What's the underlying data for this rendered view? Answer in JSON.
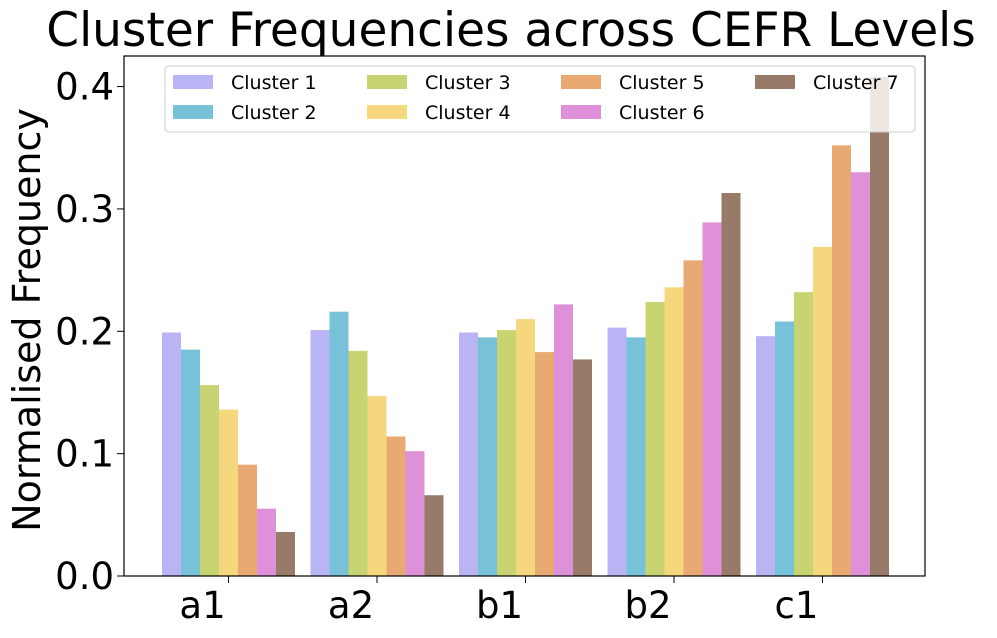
{
  "chart_data": {
    "type": "bar",
    "title": "Cluster Frequencies across CEFR Levels",
    "xlabel": "",
    "ylabel": "Normalised Frequency",
    "categories": [
      "a1",
      "a2",
      "b1",
      "b2",
      "c1"
    ],
    "ylim": [
      0,
      0.425
    ],
    "yticks": [
      0.0,
      0.1,
      0.2,
      0.3,
      0.4
    ],
    "ytick_labels": [
      "0.0",
      "0.1",
      "0.2",
      "0.3",
      "0.4"
    ],
    "legend_position": "top",
    "legend_columns": 4,
    "grid": false,
    "series": [
      {
        "name": "Cluster 1",
        "color": "#b9b4f3",
        "values": [
          0.199,
          0.201,
          0.199,
          0.203,
          0.196
        ]
      },
      {
        "name": "Cluster 2",
        "color": "#77c1d9",
        "values": [
          0.185,
          0.216,
          0.195,
          0.195,
          0.208
        ]
      },
      {
        "name": "Cluster 3",
        "color": "#c8d372",
        "values": [
          0.156,
          0.184,
          0.201,
          0.224,
          0.232
        ]
      },
      {
        "name": "Cluster 4",
        "color": "#f5d87e",
        "values": [
          0.136,
          0.147,
          0.21,
          0.236,
          0.269
        ]
      },
      {
        "name": "Cluster 5",
        "color": "#e9a973",
        "values": [
          0.091,
          0.114,
          0.183,
          0.258,
          0.352
        ]
      },
      {
        "name": "Cluster 6",
        "color": "#de91d8",
        "values": [
          0.055,
          0.102,
          0.222,
          0.289,
          0.33
        ]
      },
      {
        "name": "Cluster 7",
        "color": "#977a67",
        "values": [
          0.036,
          0.066,
          0.177,
          0.313,
          0.408
        ]
      }
    ]
  }
}
